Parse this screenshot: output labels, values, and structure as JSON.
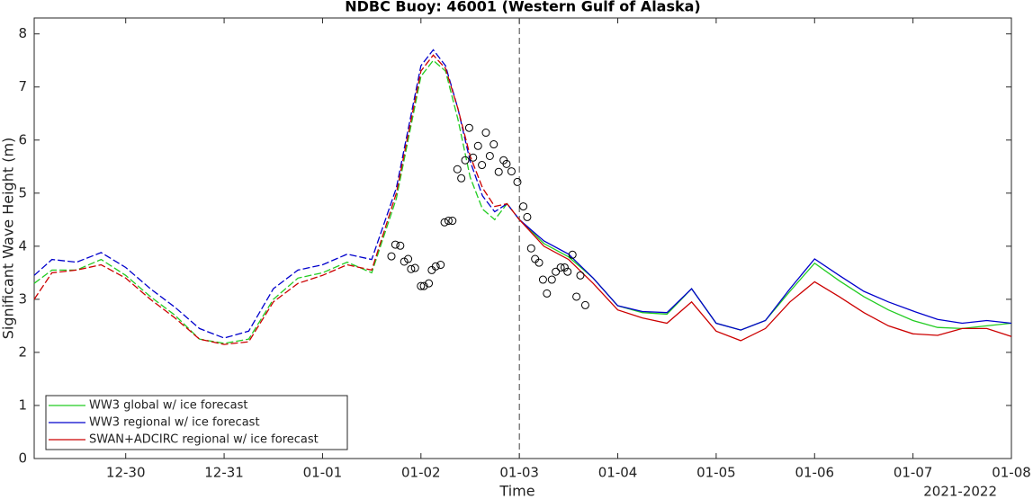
{
  "chart_data": {
    "type": "line",
    "title": "NDBC Buoy: 46001 (Western Gulf of Alaska)",
    "xlabel": "Time",
    "ylabel": "Significant Wave Height (m)",
    "x_secondary_label": "2021-2022",
    "x": [
      0.07,
      0.25,
      0.5,
      0.75,
      1,
      1.25,
      1.5,
      1.75,
      2,
      2.25,
      2.5,
      2.75,
      3,
      3.25,
      3.5,
      3.75,
      4,
      4.125,
      4.25,
      4.375,
      4.5,
      4.625,
      4.75,
      4.875,
      5,
      5.25,
      5.5,
      5.75,
      6,
      6.25,
      6.5,
      6.75,
      7,
      7.25,
      7.5,
      7.75,
      8,
      8.25,
      8.5,
      8.75,
      9,
      9.25,
      9.5,
      9.75,
      10
    ],
    "series": [
      {
        "name": "WW3 global w/ ice forecast",
        "color": "#22cc22",
        "values": [
          3.3,
          3.55,
          3.55,
          3.75,
          3.45,
          3.05,
          2.7,
          2.25,
          2.17,
          2.25,
          3.0,
          3.4,
          3.5,
          3.7,
          3.5,
          4.9,
          7.2,
          7.5,
          7.3,
          6.4,
          5.3,
          4.7,
          4.5,
          4.8,
          4.5,
          4.05,
          3.8,
          3.4,
          2.88,
          2.75,
          2.72,
          3.2,
          2.55,
          2.42,
          2.6,
          3.15,
          3.68,
          3.35,
          3.05,
          2.8,
          2.6,
          2.47,
          2.45,
          2.5,
          2.55
        ]
      },
      {
        "name": "WW3 regional w/ ice forecast",
        "color": "#0000cc",
        "values": [
          3.45,
          3.75,
          3.7,
          3.88,
          3.6,
          3.2,
          2.85,
          2.45,
          2.27,
          2.4,
          3.2,
          3.55,
          3.65,
          3.85,
          3.75,
          5.1,
          7.4,
          7.7,
          7.4,
          6.6,
          5.6,
          4.95,
          4.65,
          4.8,
          4.5,
          4.1,
          3.85,
          3.4,
          2.88,
          2.77,
          2.75,
          3.2,
          2.55,
          2.42,
          2.6,
          3.2,
          3.76,
          3.45,
          3.15,
          2.95,
          2.78,
          2.62,
          2.55,
          2.6,
          2.55
        ]
      },
      {
        "name": "SWAN+ADCIRC regional w/ ice forecast",
        "color": "#cc0000",
        "values": [
          3.0,
          3.5,
          3.55,
          3.65,
          3.4,
          3.0,
          2.65,
          2.25,
          2.15,
          2.2,
          2.95,
          3.3,
          3.45,
          3.65,
          3.55,
          5.0,
          7.3,
          7.6,
          7.35,
          6.6,
          5.7,
          5.1,
          4.75,
          4.8,
          4.5,
          4.0,
          3.75,
          3.3,
          2.8,
          2.65,
          2.55,
          2.95,
          2.4,
          2.22,
          2.45,
          2.95,
          3.33,
          3.05,
          2.75,
          2.5,
          2.35,
          2.32,
          2.45,
          2.45,
          2.3
        ]
      }
    ],
    "observations": {
      "x": [
        3.7,
        3.74,
        3.79,
        3.83,
        3.87,
        3.9,
        3.94,
        4.0,
        4.03,
        4.08,
        4.11,
        4.15,
        4.2,
        4.24,
        4.28,
        4.32,
        4.37,
        4.41,
        4.45,
        4.49,
        4.53,
        4.58,
        4.62,
        4.66,
        4.7,
        4.74,
        4.79,
        4.84,
        4.87,
        4.92,
        4.98,
        5.04,
        5.08,
        5.12,
        5.16,
        5.2,
        5.24,
        5.28,
        5.33,
        5.37,
        5.42,
        5.46,
        5.49,
        5.54,
        5.58,
        5.62,
        5.67
      ],
      "values": [
        3.81,
        4.03,
        4.01,
        3.71,
        3.76,
        3.57,
        3.59,
        3.25,
        3.25,
        3.3,
        3.55,
        3.62,
        3.65,
        4.45,
        4.48,
        4.48,
        5.45,
        5.28,
        5.62,
        6.23,
        5.67,
        5.89,
        5.53,
        6.14,
        5.7,
        5.92,
        5.4,
        5.62,
        5.55,
        5.41,
        5.21,
        4.75,
        4.55,
        3.96,
        3.76,
        3.69,
        3.37,
        3.11,
        3.37,
        3.52,
        3.6,
        3.6,
        3.52,
        3.84,
        3.05,
        3.45,
        2.89
      ]
    },
    "vline_x": 5,
    "xlim": [
      0.07,
      10
    ],
    "ylim": [
      0,
      8.3
    ],
    "xticks": [
      {
        "value": 1,
        "label": "12-30"
      },
      {
        "value": 2,
        "label": "12-31"
      },
      {
        "value": 3,
        "label": "01-01"
      },
      {
        "value": 4,
        "label": "01-02"
      },
      {
        "value": 5,
        "label": "01-03"
      },
      {
        "value": 6,
        "label": "01-04"
      },
      {
        "value": 7,
        "label": "01-05"
      },
      {
        "value": 8,
        "label": "01-06"
      },
      {
        "value": 9,
        "label": "01-07"
      },
      {
        "value": 10,
        "label": "01-08"
      }
    ],
    "yticks": [
      0,
      1,
      2,
      3,
      4,
      5,
      6,
      7,
      8
    ],
    "legend": "lower left",
    "grid": false
  }
}
